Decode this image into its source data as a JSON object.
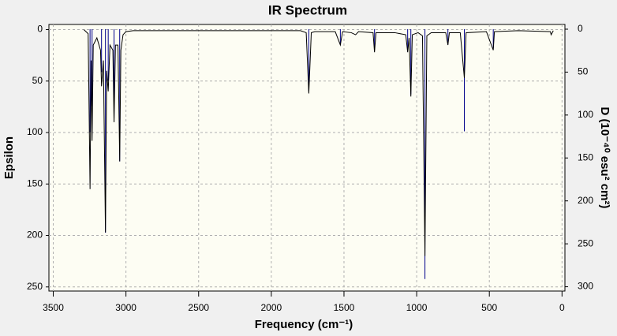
{
  "chart_data": {
    "type": "line",
    "title": "IR Spectrum",
    "x_label": "Frequency (cm⁻¹)",
    "y_label": "Epsilon",
    "y2_label": "D (10⁻⁴⁰ esu² cm²)",
    "xlim": [
      3530,
      -20
    ],
    "xticks": [
      3500,
      3000,
      2500,
      2000,
      1500,
      1000,
      500,
      0
    ],
    "ylim": [
      -5,
      254
    ],
    "yticks": [
      0,
      50,
      100,
      150,
      200,
      250
    ],
    "y2lim": [
      -5.5,
      305
    ],
    "y2ticks": [
      0,
      50,
      100,
      150,
      200,
      250,
      300
    ],
    "inverted_y": true,
    "grid": true,
    "series": [
      {
        "color": "#000000",
        "x": [
          3290,
          3260,
          3247,
          3240,
          3233,
          3225,
          3200,
          3175,
          3168,
          3155,
          3141,
          3133,
          3122,
          3110,
          3090,
          3082,
          3072,
          3055,
          3043,
          3035,
          3020,
          3000,
          2950,
          1800,
          1760,
          1742,
          1725,
          1700,
          1560,
          1525,
          1510,
          1450,
          1420,
          1400,
          1300,
          1290,
          1280,
          1200,
          1150,
          1075,
          1062,
          1052,
          1040,
          1030,
          990,
          960,
          943,
          930,
          900,
          800,
          785,
          775,
          700,
          672,
          660,
          520,
          473,
          465,
          300,
          80,
          75,
          60
        ],
        "values": [
          0,
          4,
          155,
          30,
          108,
          15,
          8,
          20,
          55,
          30,
          197,
          40,
          60,
          15,
          20,
          90,
          15,
          15,
          128,
          20,
          5,
          2,
          1,
          1,
          3,
          62,
          3,
          2,
          2,
          15,
          2,
          3,
          5,
          2,
          3,
          22,
          3,
          3,
          3,
          5,
          22,
          8,
          65,
          5,
          3,
          6,
          220,
          6,
          3,
          3,
          15,
          3,
          3,
          47,
          3,
          2,
          20,
          2,
          1,
          2,
          5,
          1
        ]
      },
      {
        "color": "#00008b",
        "type": "stick",
        "axis": "y2",
        "x": [
          3247,
          3233,
          3168,
          3141,
          3122,
          3082,
          3043,
          1742,
          1525,
          1290,
          1062,
          1040,
          943,
          785,
          672,
          473
        ],
        "values": [
          120,
          90,
          50,
          237,
          60,
          104,
          154,
          72,
          17,
          24,
          22,
          76,
          291,
          18,
          119,
          22
        ]
      }
    ]
  }
}
